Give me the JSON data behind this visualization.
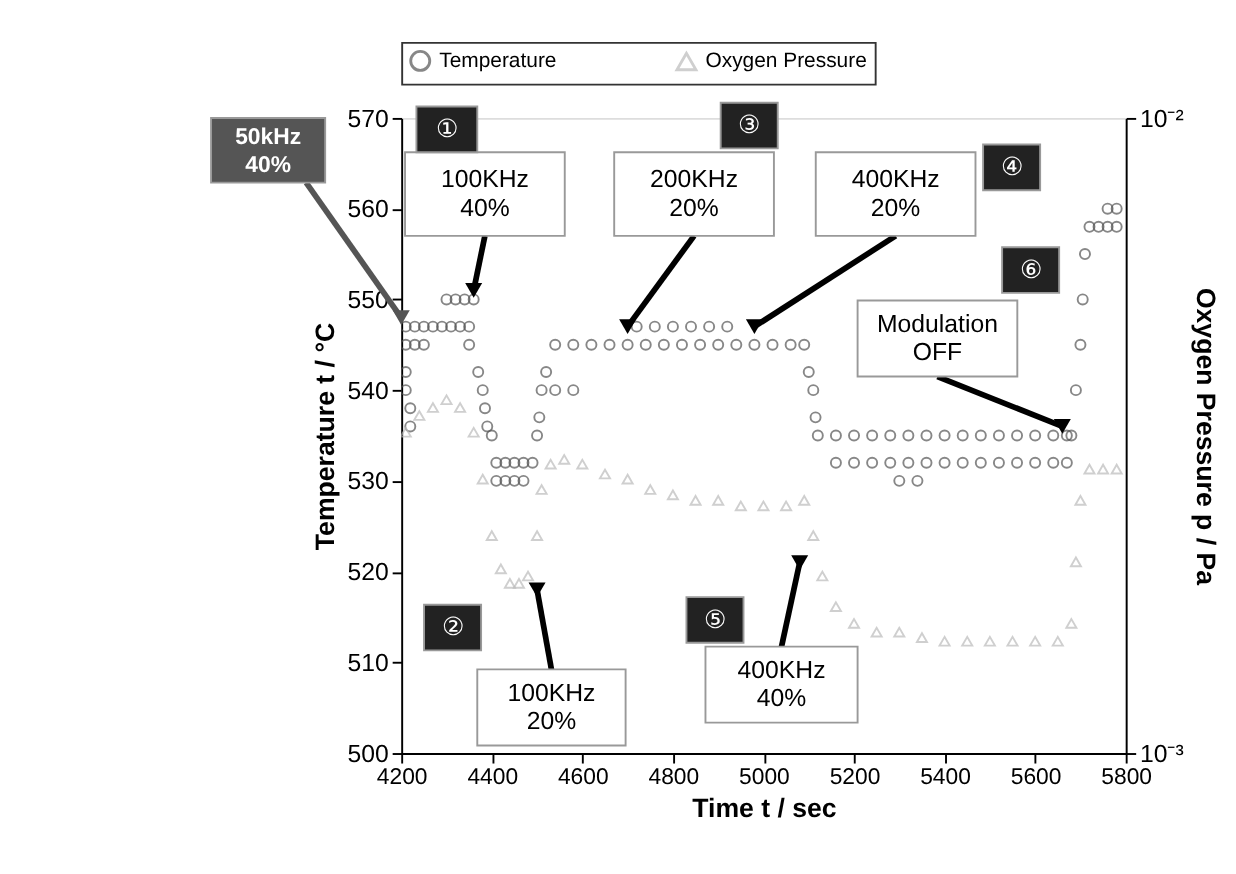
{
  "chart_data": {
    "type": "scatter",
    "xlabel": "Time t / sec",
    "ylabel": "Temperature t / °C",
    "y2label": "Oxygen Pressure p / Pa",
    "xlim": [
      4200,
      5800
    ],
    "xticks": [
      4200,
      4400,
      4600,
      4800,
      5000,
      5200,
      5400,
      5600,
      5800
    ],
    "ylim": [
      500,
      570
    ],
    "yticks": [
      500,
      510,
      520,
      530,
      540,
      550,
      560,
      570
    ],
    "y2lim": [
      0.001,
      0.01
    ],
    "y2ticks": [
      {
        "value": 0.001,
        "label": "10⁻³"
      },
      {
        "value": 0.01,
        "label": "10⁻²"
      }
    ],
    "log": "y2",
    "grid": false,
    "legend": "top",
    "series": [
      {
        "name": "Temperature",
        "color": "#555555",
        "marker": "circle",
        "x": [
          4210,
          4230,
          4250,
          4270,
          4290,
          4310,
          4330,
          4350,
          4300,
          4320,
          4340,
          4360,
          4210,
          4230,
          4250,
          4210,
          4210,
          4220,
          4220,
          4350,
          4370,
          4380,
          4385,
          4390,
          4400,
          4410,
          4430,
          4450,
          4470,
          4410,
          4430,
          4450,
          4470,
          4490,
          4500,
          4505,
          4510,
          4520,
          4540,
          4580,
          4620,
          4660,
          4700,
          4740,
          4780,
          4820,
          4860,
          4900,
          4940,
          4980,
          5020,
          5060,
          5090,
          4540,
          4580,
          4720,
          4760,
          4800,
          4840,
          4880,
          4920,
          5100,
          5110,
          5115,
          5120,
          5160,
          5200,
          5240,
          5280,
          5320,
          5360,
          5400,
          5440,
          5480,
          5520,
          5560,
          5600,
          5640,
          5670,
          5160,
          5200,
          5240,
          5280,
          5320,
          5360,
          5400,
          5440,
          5480,
          5520,
          5560,
          5600,
          5640,
          5670,
          5300,
          5340,
          5680,
          5690,
          5700,
          5705,
          5710,
          5720,
          5740,
          5760,
          5780,
          5760,
          5780
        ],
        "values": [
          547,
          547,
          547,
          547,
          547,
          547,
          547,
          547,
          550,
          550,
          550,
          550,
          545,
          545,
          545,
          542,
          540,
          538,
          536,
          545,
          542,
          540,
          538,
          536,
          535,
          532,
          532,
          532,
          532,
          530,
          530,
          530,
          530,
          532,
          535,
          537,
          540,
          542,
          545,
          545,
          545,
          545,
          545,
          545,
          545,
          545,
          545,
          545,
          545,
          545,
          545,
          545,
          545,
          540,
          540,
          547,
          547,
          547,
          547,
          547,
          547,
          542,
          540,
          537,
          535,
          535,
          535,
          535,
          535,
          535,
          535,
          535,
          535,
          535,
          535,
          535,
          535,
          535,
          535,
          532,
          532,
          532,
          532,
          532,
          532,
          532,
          532,
          532,
          532,
          532,
          532,
          532,
          532,
          530,
          530,
          535,
          540,
          545,
          550,
          555,
          558,
          558,
          558,
          558,
          560,
          560
        ]
      },
      {
        "name": "Oxygen Pressure",
        "color": "#bbbbbb",
        "marker": "triangle",
        "axis": "y2",
        "x": [
          4210,
          4240,
          4270,
          4300,
          4330,
          4360,
          4380,
          4400,
          4420,
          4440,
          4460,
          4480,
          4500,
          4510,
          4530,
          4560,
          4600,
          4650,
          4700,
          4750,
          4800,
          4850,
          4900,
          4950,
          5000,
          5050,
          5090,
          5110,
          5130,
          5160,
          5200,
          5250,
          5300,
          5350,
          5400,
          5450,
          5500,
          5550,
          5600,
          5650,
          5680,
          5690,
          5700,
          5720,
          5750,
          5780
        ],
        "values": [
          0.0032,
          0.0034,
          0.0035,
          0.0036,
          0.0035,
          0.0032,
          0.0027,
          0.0022,
          0.00195,
          0.00185,
          0.00185,
          0.0019,
          0.0022,
          0.0026,
          0.00285,
          0.0029,
          0.00285,
          0.00275,
          0.0027,
          0.0026,
          0.00255,
          0.0025,
          0.0025,
          0.00245,
          0.00245,
          0.00245,
          0.0025,
          0.0022,
          0.0019,
          0.0017,
          0.0016,
          0.00155,
          0.00155,
          0.00152,
          0.0015,
          0.0015,
          0.0015,
          0.0015,
          0.0015,
          0.0015,
          0.0016,
          0.002,
          0.0025,
          0.0028,
          0.0028,
          0.0028
        ]
      }
    ],
    "annotations": [
      {
        "text": "50kHz\n40%",
        "x": 4200,
        "y": 548
      },
      {
        "text": "100KHz\n40%",
        "x": 4360,
        "y": 551
      },
      {
        "text": "200KHz\n20%",
        "x": 4700,
        "y": 547
      },
      {
        "text": "400KHz\n20%",
        "x": 4980,
        "y": 547
      },
      {
        "text": "100KHz\n20%",
        "x": 4500,
        "y": 518
      },
      {
        "text": "400KHz\n40%",
        "x": 5080,
        "y": 521
      },
      {
        "text": "Modulation\nOFF",
        "x": 5660,
        "y": 536
      },
      {
        "text": "①"
      },
      {
        "text": "②"
      },
      {
        "text": "③"
      },
      {
        "text": "④"
      },
      {
        "text": "⑤"
      },
      {
        "text": "⑥"
      }
    ]
  }
}
